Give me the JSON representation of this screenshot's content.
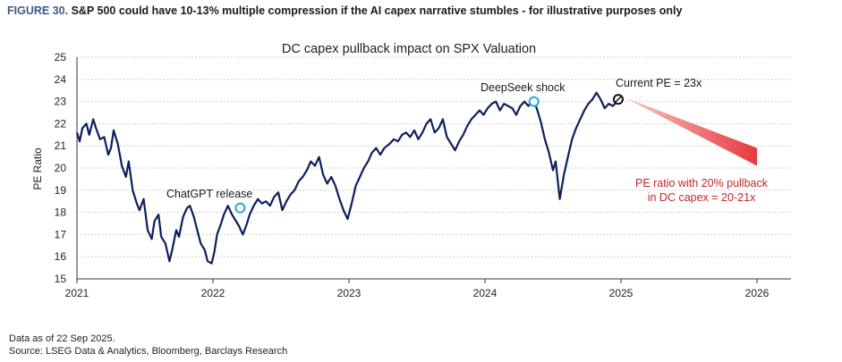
{
  "header": {
    "figure_number": "FIGURE 30.",
    "title": "S&P 500 could have 10-13% multiple compression if the AI capex narrative stumbles - for illustrative purposes only"
  },
  "footnotes": {
    "data_as_of": "Data as of 22 Sep 2025.",
    "source": "Source: LSEG Data & Analytics, Bloomberg, Barclays Research"
  },
  "colors": {
    "series": "#0d1f5c",
    "marker_blue": "#2aa8e0",
    "projection_red": "#e8383d",
    "annotation_red": "#c0282d"
  },
  "chart_data": {
    "type": "line",
    "title": "DC capex pullback impact on SPX Valuation",
    "xlabel": "",
    "ylabel": "PE Ratio",
    "xlim": [
      2021.0,
      2026.25
    ],
    "ylim": [
      15,
      25
    ],
    "x_ticks": [
      "2021",
      "2022",
      "2023",
      "2024",
      "2025",
      "2026"
    ],
    "y_ticks": [
      "15",
      "16",
      "17",
      "18",
      "19",
      "20",
      "21",
      "22",
      "23",
      "24",
      "25"
    ],
    "series": [
      {
        "name": "",
        "x": [
          2021.0,
          2021.02,
          2021.04,
          2021.07,
          2021.09,
          2021.12,
          2021.14,
          2021.17,
          2021.2,
          2021.23,
          2021.25,
          2021.27,
          2021.3,
          2021.33,
          2021.36,
          2021.38,
          2021.41,
          2021.44,
          2021.46,
          2021.49,
          2021.52,
          2021.55,
          2021.57,
          2021.6,
          2021.62,
          2021.65,
          2021.68,
          2021.7,
          2021.73,
          2021.75,
          2021.78,
          2021.81,
          2021.83,
          2021.86,
          2021.88,
          2021.91,
          2021.94,
          2021.96,
          2021.99,
          2022.01,
          2022.03,
          2022.06,
          2022.08,
          2022.11,
          2022.14,
          2022.17,
          2022.19,
          2022.22,
          2022.25,
          2022.27,
          2022.3,
          2022.33,
          2022.36,
          2022.39,
          2022.42,
          2022.45,
          2022.48,
          2022.51,
          2022.54,
          2022.57,
          2022.6,
          2022.63,
          2022.66,
          2022.69,
          2022.72,
          2022.75,
          2022.78,
          2022.81,
          2022.84,
          2022.87,
          2022.9,
          2022.93,
          2022.96,
          2022.99,
          2023.02,
          2023.05,
          2023.08,
          2023.11,
          2023.14,
          2023.17,
          2023.2,
          2023.23,
          2023.26,
          2023.3,
          2023.33,
          2023.36,
          2023.39,
          2023.42,
          2023.45,
          2023.48,
          2023.51,
          2023.54,
          2023.57,
          2023.6,
          2023.63,
          2023.66,
          2023.69,
          2023.72,
          2023.75,
          2023.78,
          2023.81,
          2023.84,
          2023.87,
          2023.9,
          2023.93,
          2023.96,
          2023.99,
          2024.02,
          2024.05,
          2024.08,
          2024.11,
          2024.14,
          2024.17,
          2024.2,
          2024.23,
          2024.26,
          2024.29,
          2024.32,
          2024.35,
          2024.38,
          2024.41,
          2024.44,
          2024.47,
          2024.5,
          2024.52,
          2024.55,
          2024.58,
          2024.61,
          2024.64,
          2024.67,
          2024.7,
          2024.73,
          2024.76,
          2024.79,
          2024.82,
          2024.85,
          2024.88,
          2024.91,
          2024.94,
          2024.97
        ],
        "values": [
          21.6,
          21.2,
          21.8,
          22.0,
          21.5,
          22.2,
          21.8,
          21.3,
          21.4,
          20.6,
          20.9,
          21.7,
          21.1,
          20.1,
          19.6,
          20.3,
          19.0,
          18.4,
          18.1,
          18.6,
          17.2,
          16.8,
          17.6,
          17.9,
          16.9,
          16.6,
          15.8,
          16.3,
          17.2,
          16.9,
          17.8,
          18.2,
          18.3,
          17.8,
          17.3,
          16.6,
          16.3,
          15.8,
          15.7,
          16.2,
          17.0,
          17.5,
          17.9,
          18.3,
          17.9,
          17.6,
          17.4,
          17.0,
          17.5,
          17.9,
          18.3,
          18.6,
          18.4,
          18.5,
          18.3,
          18.7,
          18.9,
          18.1,
          18.5,
          18.8,
          19.0,
          19.4,
          19.6,
          19.9,
          20.3,
          20.1,
          20.5,
          19.7,
          19.3,
          19.6,
          19.2,
          18.6,
          18.1,
          17.7,
          18.4,
          19.2,
          19.6,
          20.0,
          20.3,
          20.7,
          20.9,
          20.6,
          20.9,
          21.1,
          21.3,
          21.2,
          21.5,
          21.6,
          21.4,
          21.7,
          21.3,
          21.6,
          22.0,
          22.2,
          21.6,
          21.8,
          22.2,
          21.4,
          21.1,
          20.8,
          21.2,
          21.5,
          21.9,
          22.2,
          22.4,
          22.6,
          22.4,
          22.7,
          22.9,
          23.0,
          22.6,
          22.9,
          22.8,
          22.7,
          22.4,
          22.8,
          23.0,
          22.8,
          23.1,
          22.7,
          22.1,
          21.3,
          20.7,
          19.9,
          20.3,
          18.6,
          19.7,
          20.5,
          21.3,
          21.8,
          22.2,
          22.6,
          22.9,
          23.1,
          23.4,
          23.1,
          22.7,
          22.9,
          22.8,
          23.0
        ]
      }
    ],
    "projection": {
      "x": [
        2025.02,
        2026.0
      ],
      "upper": [
        23.2,
        20.9
      ],
      "lower": [
        23.2,
        20.1
      ]
    },
    "markers": [
      {
        "label": "ChatGPT release",
        "x": 2022.2,
        "y": 18.2
      },
      {
        "label": "DeepSeek shock",
        "x": 2024.36,
        "y": 23.0
      },
      {
        "label": "Current PE = 23x",
        "x": 2024.98,
        "y": 23.1
      }
    ],
    "annotations": {
      "chatgpt": "ChatGPT release",
      "deepseek": "DeepSeek shock",
      "current": "Current PE = 23x",
      "pullback_line1": "PE ratio with 20% pullback",
      "pullback_line2": "in DC capex = 20-21x"
    },
    "grid": true
  }
}
